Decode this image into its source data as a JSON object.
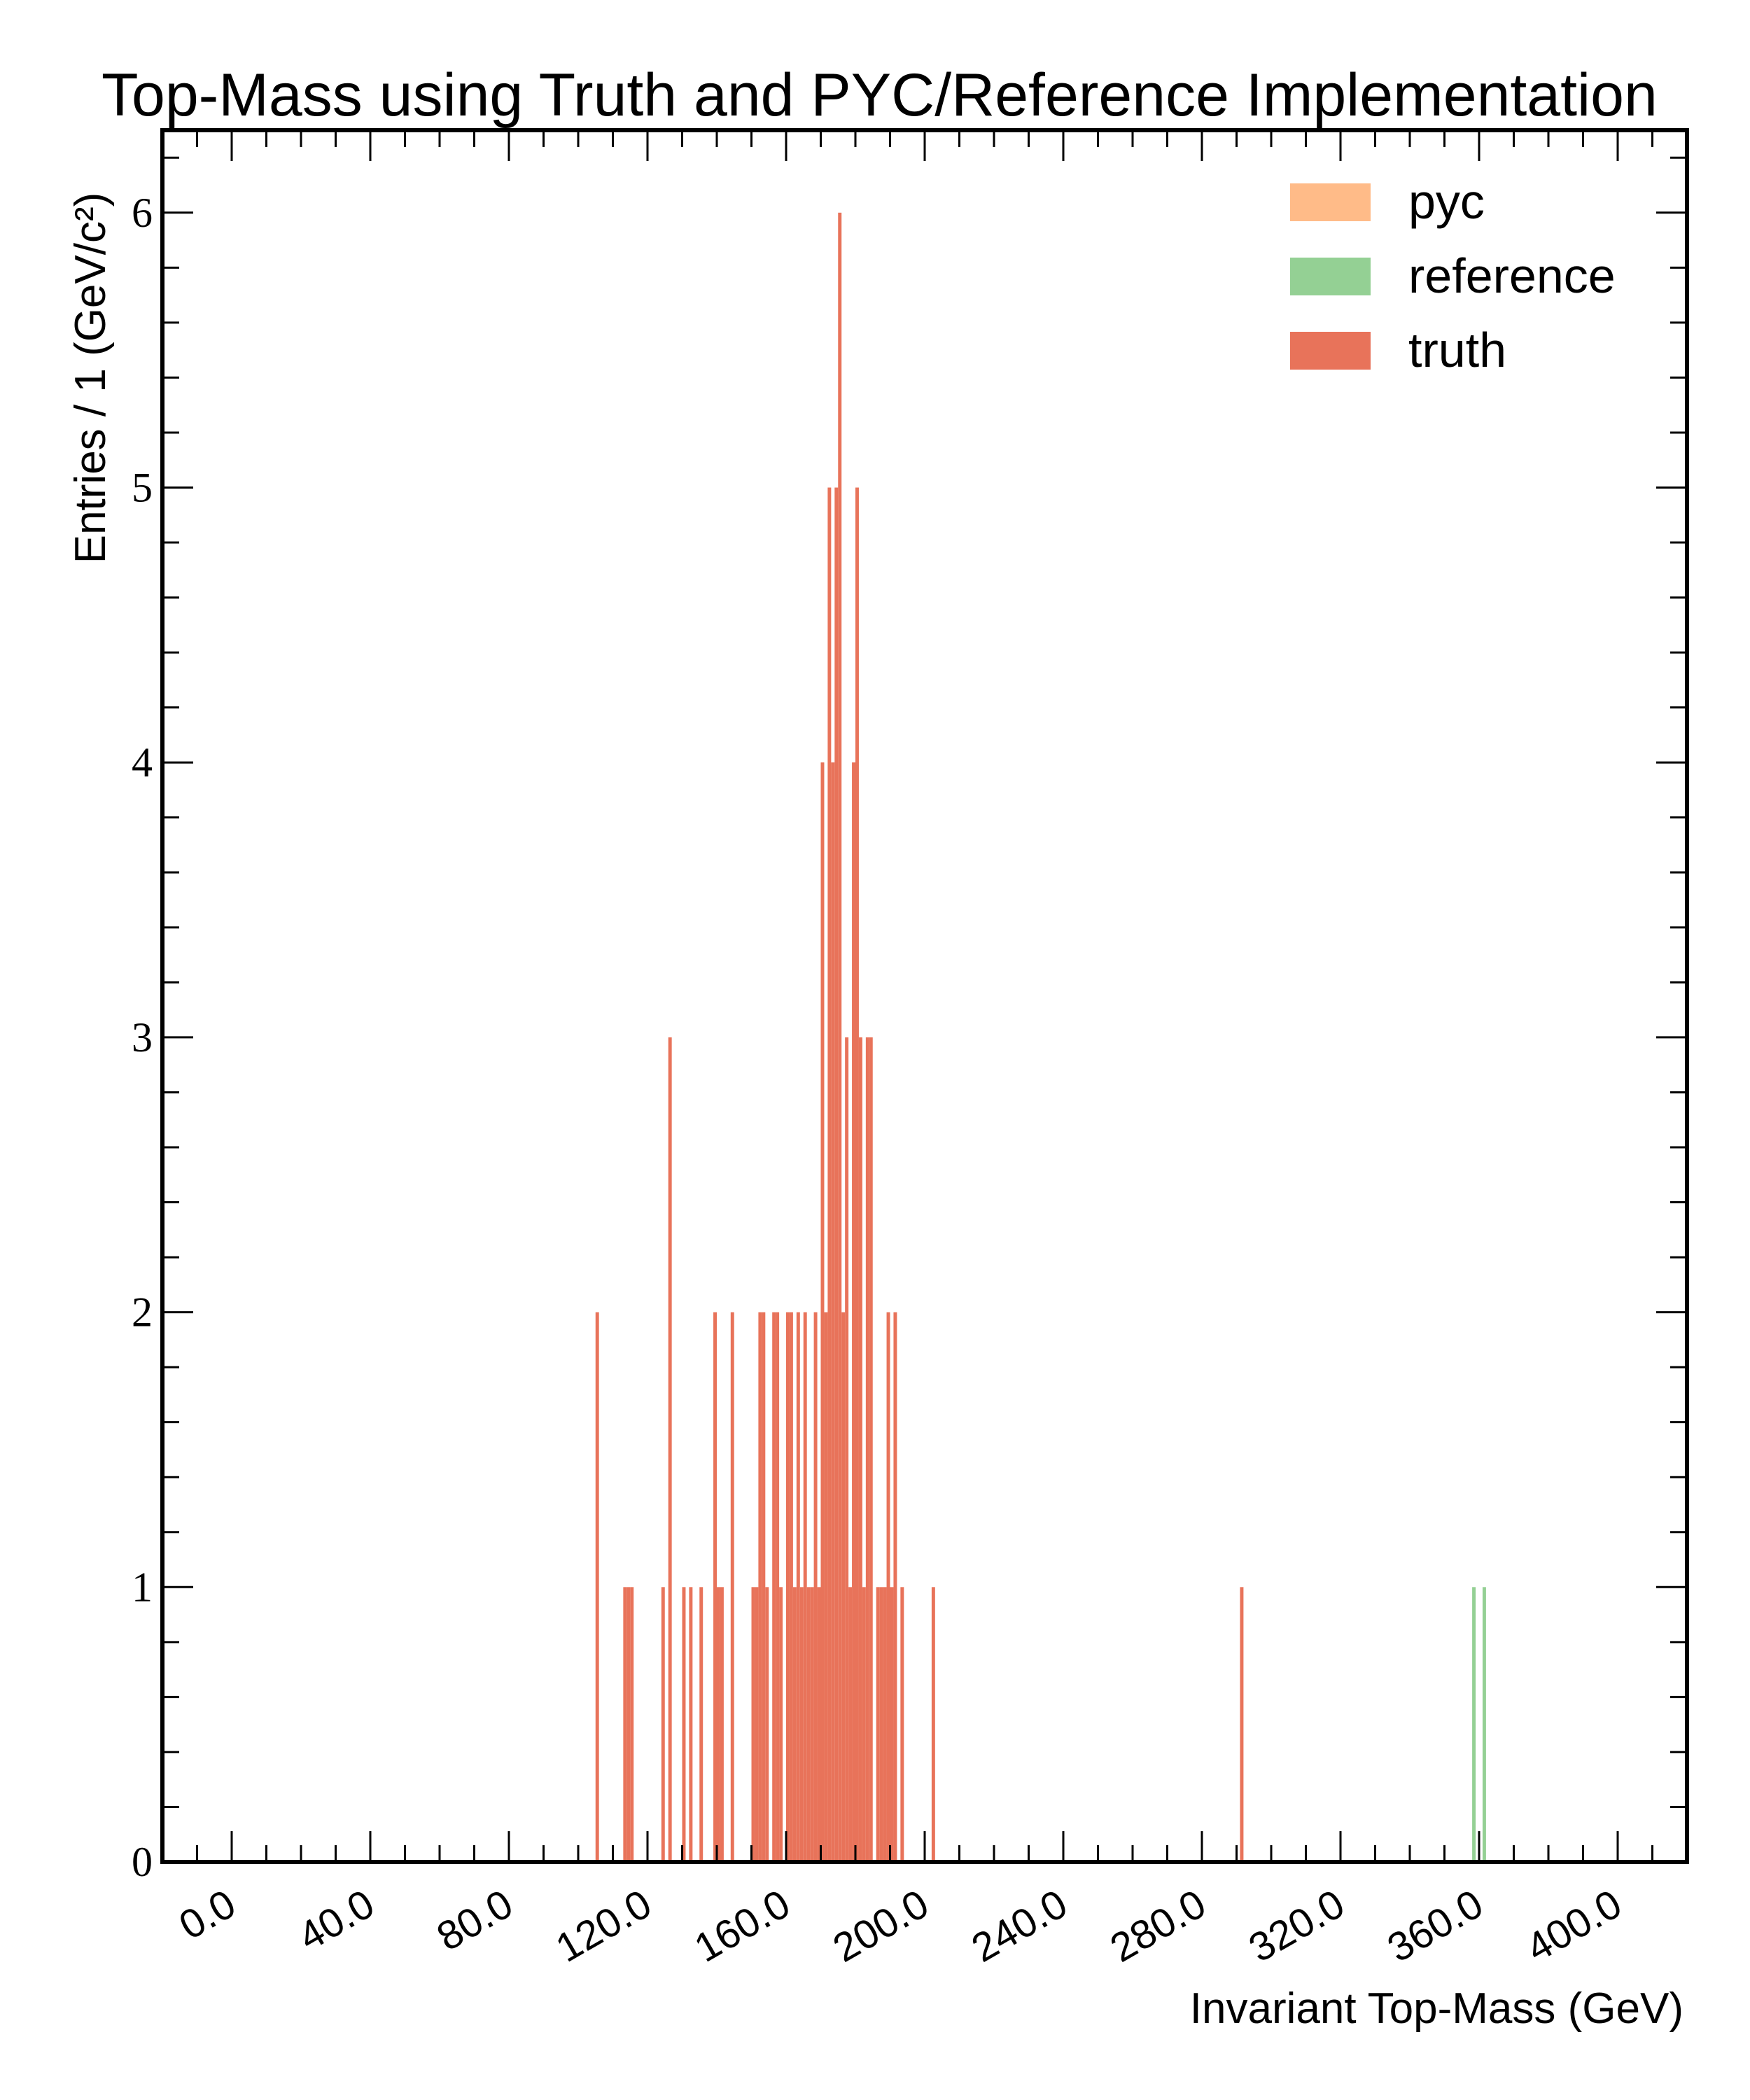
{
  "chart_data": {
    "type": "bar",
    "title": "Top-Mass using Truth and PYC/Reference Implementation",
    "xlabel": "Invariant Top-Mass (GeV)",
    "ylabel": "Entries / 1 (GeV/c²)",
    "xlim": [
      -20,
      420
    ],
    "ylim": [
      0,
      6.3
    ],
    "x_ticks": [
      0,
      40,
      80,
      120,
      160,
      200,
      240,
      280,
      320,
      360,
      400
    ],
    "x_tick_labels": [
      "0.0",
      "40.0",
      "80.0",
      "120.0",
      "160.0",
      "200.0",
      "240.0",
      "280.0",
      "320.0",
      "360.0",
      "400.0"
    ],
    "y_ticks": [
      0,
      1,
      2,
      3,
      4,
      5,
      6
    ],
    "y_tick_labels": [
      "0",
      "1",
      "2",
      "3",
      "4",
      "5",
      "6"
    ],
    "bin_width": 1,
    "legend_position": "top-right",
    "series": [
      {
        "name": "pyc",
        "color": "#ffbb88",
        "bins": []
      },
      {
        "name": "reference",
        "color": "#94d094",
        "bins": [
          [
            358,
            1
          ],
          [
            361,
            1
          ]
        ]
      },
      {
        "name": "truth",
        "color": "#e8735a",
        "bins": [
          [
            105,
            2
          ],
          [
            113,
            1
          ],
          [
            114,
            1
          ],
          [
            115,
            1
          ],
          [
            124,
            1
          ],
          [
            126,
            3
          ],
          [
            130,
            1
          ],
          [
            132,
            1
          ],
          [
            135,
            1
          ],
          [
            139,
            2
          ],
          [
            140,
            1
          ],
          [
            141,
            1
          ],
          [
            144,
            2
          ],
          [
            150,
            1
          ],
          [
            151,
            1
          ],
          [
            152,
            2
          ],
          [
            153,
            2
          ],
          [
            154,
            1
          ],
          [
            156,
            2
          ],
          [
            157,
            2
          ],
          [
            158,
            1
          ],
          [
            160,
            2
          ],
          [
            161,
            2
          ],
          [
            162,
            1
          ],
          [
            163,
            2
          ],
          [
            164,
            1
          ],
          [
            165,
            2
          ],
          [
            166,
            1
          ],
          [
            167,
            1
          ],
          [
            168,
            2
          ],
          [
            169,
            1
          ],
          [
            170,
            4
          ],
          [
            171,
            2
          ],
          [
            172,
            5
          ],
          [
            173,
            4
          ],
          [
            174,
            5
          ],
          [
            175,
            6
          ],
          [
            176,
            2
          ],
          [
            177,
            3
          ],
          [
            178,
            1
          ],
          [
            179,
            4
          ],
          [
            180,
            5
          ],
          [
            181,
            3
          ],
          [
            182,
            1
          ],
          [
            183,
            3
          ],
          [
            184,
            3
          ],
          [
            186,
            1
          ],
          [
            187,
            1
          ],
          [
            188,
            1
          ],
          [
            189,
            2
          ],
          [
            190,
            1
          ],
          [
            191,
            2
          ],
          [
            193,
            1
          ],
          [
            202,
            1
          ],
          [
            291,
            1
          ]
        ]
      }
    ]
  }
}
